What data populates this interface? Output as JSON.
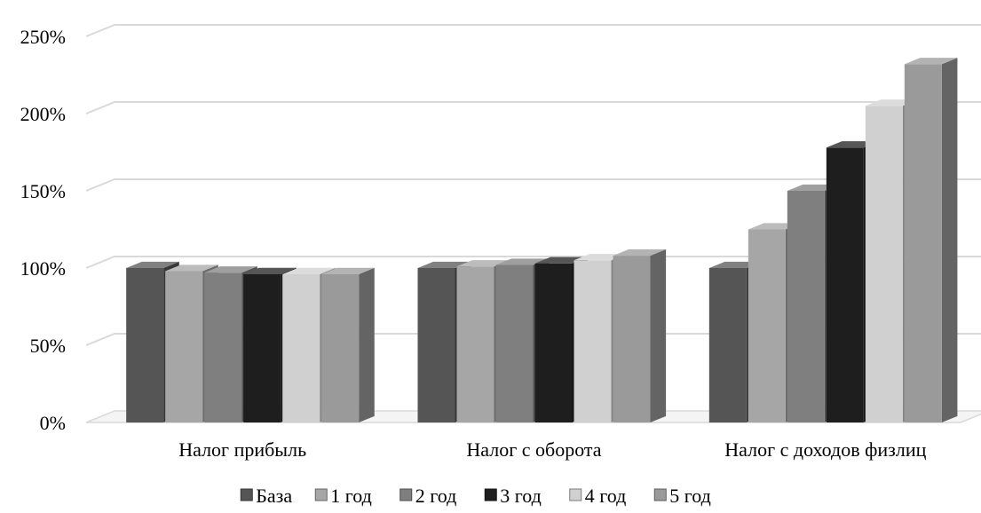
{
  "chart_data": {
    "type": "bar",
    "title": "",
    "xlabel": "",
    "ylabel": "",
    "ylim": [
      0,
      2.5
    ],
    "yticks": [
      {
        "value": 0,
        "label": "0%"
      },
      {
        "value": 0.5,
        "label": "50%"
      },
      {
        "value": 1.0,
        "label": "100%"
      },
      {
        "value": 1.5,
        "label": "150%"
      },
      {
        "value": 2.0,
        "label": "200%"
      },
      {
        "value": 2.5,
        "label": "250%"
      }
    ],
    "grid": true,
    "legend_position": "bottom",
    "categories": [
      "Налог прибыль",
      "Налог с оборота",
      "Налог с доходов физлиц"
    ],
    "series": [
      {
        "name": "База",
        "color": "#555555",
        "values": [
          1.0,
          1.0,
          1.0
        ]
      },
      {
        "name": "1 год",
        "color": "#a6a6a6",
        "values": [
          0.98,
          1.01,
          1.25
        ]
      },
      {
        "name": "2 год",
        "color": "#7f7f7f",
        "values": [
          0.97,
          1.02,
          1.5
        ]
      },
      {
        "name": "3 год",
        "color": "#1e1e1e",
        "values": [
          0.96,
          1.03,
          1.78
        ]
      },
      {
        "name": "4 год",
        "color": "#d0d0d0",
        "values": [
          0.96,
          1.05,
          2.05
        ]
      },
      {
        "name": "5 год",
        "color": "#9a9a9a",
        "values": [
          0.96,
          1.08,
          2.32
        ]
      }
    ]
  }
}
